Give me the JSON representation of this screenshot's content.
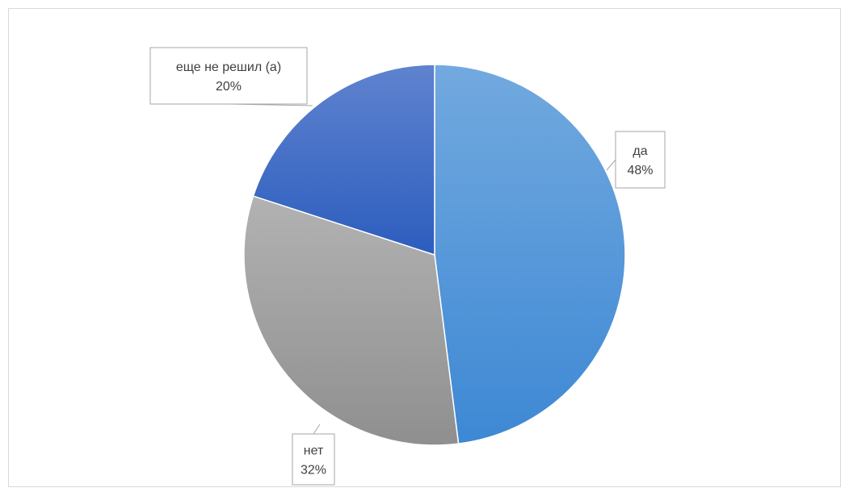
{
  "chart_data": {
    "type": "pie",
    "title": "",
    "slices": [
      {
        "name": "да",
        "value": 48,
        "label": "48%",
        "color": "#4a90d6"
      },
      {
        "name": "нет",
        "value": 32,
        "label": "32%",
        "color": "#9e9e9e"
      },
      {
        "name": "еще не решил (а)",
        "value": 20,
        "label": "20%",
        "color": "#3a67c4"
      }
    ],
    "legend": "none"
  }
}
